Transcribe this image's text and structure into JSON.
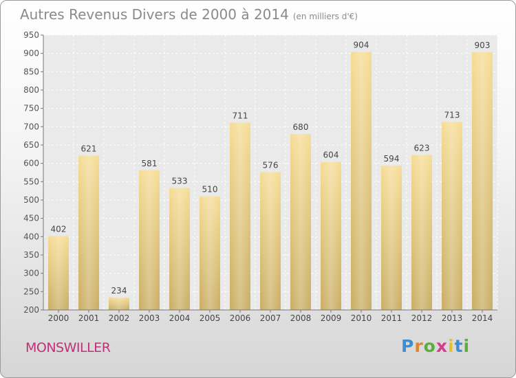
{
  "title": "Autres Revenus Divers de 2000 à 2014",
  "unit_label": "(en milliers d'€)",
  "location": "MONSWILLER",
  "logo_text": "Proxiti",
  "colors": {
    "bar": "#e8cd80",
    "title": "#8a8a8a",
    "location": "#c0307a"
  },
  "chart_data": {
    "type": "bar",
    "title": "Autres Revenus Divers de 2000 à 2014",
    "categories": [
      "2000",
      "2001",
      "2002",
      "2003",
      "2004",
      "2005",
      "2006",
      "2007",
      "2008",
      "2009",
      "2010",
      "2011",
      "2012",
      "2013",
      "2014"
    ],
    "values": [
      402,
      621,
      234,
      581,
      533,
      510,
      711,
      576,
      680,
      604,
      904,
      594,
      623,
      713,
      903
    ],
    "ylim": [
      200,
      950
    ],
    "yticks": [
      200,
      250,
      300,
      350,
      400,
      450,
      500,
      550,
      600,
      650,
      700,
      750,
      800,
      850,
      900,
      950
    ],
    "grid": true
  }
}
